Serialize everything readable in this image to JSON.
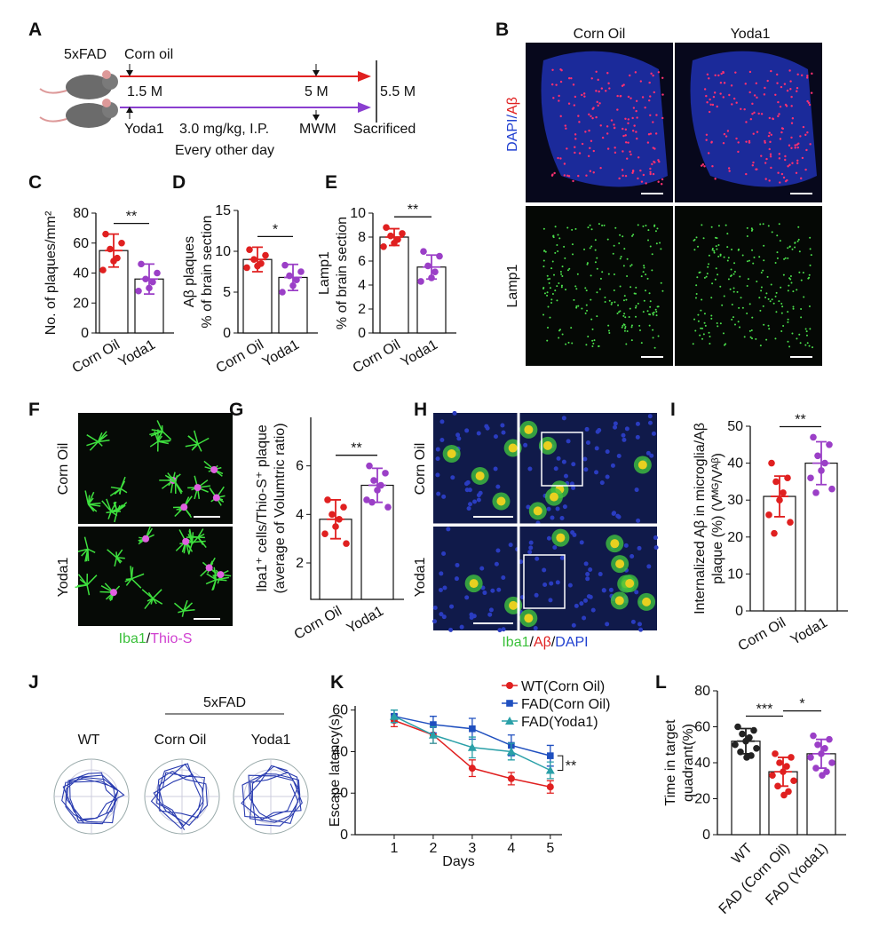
{
  "panel_labels": [
    "A",
    "B",
    "F",
    "H",
    "J"
  ],
  "timeline": {
    "model": "5xFAD",
    "control": "Corn oil",
    "start": "1.5 M",
    "test": "5 M",
    "end": "5.5 M",
    "treatment": "Yoda1",
    "dose": "3.0 mg/kg, I.P.",
    "test_name": "MWM",
    "end_name": "Sacrificed",
    "schedule": "Every other day"
  },
  "images_b": {
    "columns": [
      "Corn Oil",
      "Yoda1"
    ],
    "stain_top": [
      "DAPI",
      "/",
      "Aβ"
    ],
    "stain_bottom": "Lamp1"
  },
  "images_f": {
    "rows": [
      "Corn Oil",
      "Yoda1"
    ],
    "stain": [
      "Iba1",
      "/",
      "Thio-S"
    ]
  },
  "images_h": {
    "rows": [
      "Corn Oil",
      "Yoda1"
    ],
    "stain": [
      "Iba1",
      "/",
      "Aβ",
      "/",
      "DAPI"
    ]
  },
  "tracks_j": {
    "groups": [
      "WT",
      "Corn Oil",
      "Yoda1"
    ],
    "model": "5xFAD"
  },
  "chart_data": [
    {
      "type": "bar",
      "label": "C",
      "ylabel": [
        "No. of plaques/mm²"
      ],
      "categories": [
        "Corn Oil",
        "Yoda1"
      ],
      "values": [
        55,
        36
      ],
      "errors": [
        11,
        10
      ],
      "points": [
        [
          66,
          60,
          56,
          50,
          48,
          42
        ],
        [
          46,
          40,
          36,
          34,
          30,
          28
        ]
      ],
      "colors": [
        "#e02020",
        "#9b3fc7"
      ],
      "ylim": [
        0,
        80
      ],
      "yticks": [
        0,
        20,
        40,
        60,
        80
      ],
      "significance": [
        "**"
      ]
    },
    {
      "type": "bar",
      "label": "D",
      "ylabel": [
        "Aβ plaques",
        "% of brain section"
      ],
      "categories": [
        "Corn Oil",
        "Yoda1"
      ],
      "values": [
        9,
        6.8
      ],
      "errors": [
        1.5,
        1.6
      ],
      "points": [
        [
          10.2,
          9.5,
          9,
          8.5,
          8.2,
          8
        ],
        [
          8.3,
          7.5,
          7,
          6.5,
          5.8,
          5
        ]
      ],
      "colors": [
        "#e02020",
        "#9b3fc7"
      ],
      "ylim": [
        0,
        15
      ],
      "yticks": [
        0,
        5,
        10,
        15
      ],
      "significance": [
        "*"
      ]
    },
    {
      "type": "bar",
      "label": "E",
      "ylabel": [
        "Lamp1",
        "% of brain section"
      ],
      "categories": [
        "Corn Oil",
        "Yoda1"
      ],
      "values": [
        8,
        5.5
      ],
      "errors": [
        0.7,
        1
      ],
      "points": [
        [
          8.8,
          8.3,
          8.1,
          7.8,
          7.5,
          7.2
        ],
        [
          6.8,
          6.4,
          5.6,
          5.1,
          4.6,
          4.3
        ]
      ],
      "colors": [
        "#e02020",
        "#9b3fc7"
      ],
      "ylim": [
        0,
        10
      ],
      "yticks": [
        0,
        2,
        4,
        6,
        8,
        10
      ],
      "significance": [
        "**"
      ]
    },
    {
      "type": "bar",
      "label": "G",
      "ylabel": [
        "Iba1⁺ cells/Thio-S⁺ plaque",
        "(average of Volumtric ratio)"
      ],
      "categories": [
        "Corn Oil",
        "Yoda1"
      ],
      "values": [
        3.8,
        5.2
      ],
      "errors": [
        0.8,
        0.7
      ],
      "points": [
        [
          4.6,
          4.3,
          4,
          3.8,
          3.5,
          3.2,
          2.8
        ],
        [
          6,
          5.7,
          5.4,
          5.2,
          5,
          4.6,
          4.3,
          4.5
        ]
      ],
      "colors": [
        "#e02020",
        "#9b3fc7"
      ],
      "ylim": [
        0.5,
        8
      ],
      "yticks": [
        2,
        4,
        6
      ],
      "significance": [
        "**"
      ]
    },
    {
      "type": "bar",
      "label": "I",
      "ylabel": [
        "Internalized Aβ in microglia/Aβ",
        "plaque (%) (Vᴹᴳ/Vᴬᵝ)"
      ],
      "categories": [
        "Corn Oil",
        "Yoda1"
      ],
      "values": [
        31,
        40
      ],
      "errors": [
        5.5,
        5.8
      ],
      "points": [
        [
          40,
          36,
          35,
          32,
          30,
          26,
          24,
          21
        ],
        [
          47,
          45,
          42,
          40,
          38,
          36,
          33,
          32
        ]
      ],
      "colors": [
        "#e02020",
        "#9b3fc7"
      ],
      "ylim": [
        0,
        50
      ],
      "yticks": [
        0,
        10,
        20,
        30,
        40,
        50
      ],
      "significance": [
        "**"
      ]
    },
    {
      "type": "line",
      "label": "K",
      "ylabel": "Escape latency(s)",
      "xlabel": "Days",
      "x": [
        1,
        2,
        3,
        4,
        5
      ],
      "xlim": [
        0,
        5.3
      ],
      "xticks": [
        1,
        2,
        3,
        4,
        5
      ],
      "ylim": [
        0,
        62
      ],
      "yticks": [
        0,
        20,
        40,
        60
      ],
      "series": [
        {
          "name": "WT(Corn Oil)",
          "color": "#e02020",
          "marker": "circle",
          "values": [
            55,
            48,
            32,
            27,
            23
          ],
          "errors": [
            3,
            4,
            4,
            3,
            3
          ]
        },
        {
          "name": "FAD(Corn Oil)",
          "color": "#1f4fbf",
          "marker": "square",
          "values": [
            57,
            53,
            51,
            43,
            38
          ],
          "errors": [
            3,
            4,
            5,
            5,
            5
          ]
        },
        {
          "name": "FAD(Yoda1)",
          "color": "#2aa0a8",
          "marker": "triangle",
          "values": [
            57,
            48,
            42,
            40,
            31
          ],
          "errors": [
            3,
            4,
            5,
            4,
            4
          ]
        }
      ],
      "significance": [
        "**"
      ]
    },
    {
      "type": "bar",
      "label": "L",
      "ylabel": [
        "Time in target",
        "quadrant(%)"
      ],
      "categories": [
        "WT",
        "FAD (Corn Oil)",
        "FAD (Yoda1)"
      ],
      "values": [
        52,
        35,
        45
      ],
      "errors": [
        7,
        8,
        8
      ],
      "points": [
        [
          60,
          58,
          56,
          54,
          52,
          50,
          48,
          46,
          44,
          43
        ],
        [
          45,
          43,
          40,
          38,
          35,
          33,
          30,
          27,
          24,
          22
        ],
        [
          55,
          53,
          50,
          48,
          45,
          43,
          40,
          37,
          35,
          33
        ]
      ],
      "colors": [
        "#222222",
        "#e02020",
        "#9b3fc7"
      ],
      "ylim": [
        0,
        80
      ],
      "yticks": [
        0,
        20,
        40,
        60,
        80
      ],
      "significance": [
        "***",
        "*"
      ]
    }
  ]
}
